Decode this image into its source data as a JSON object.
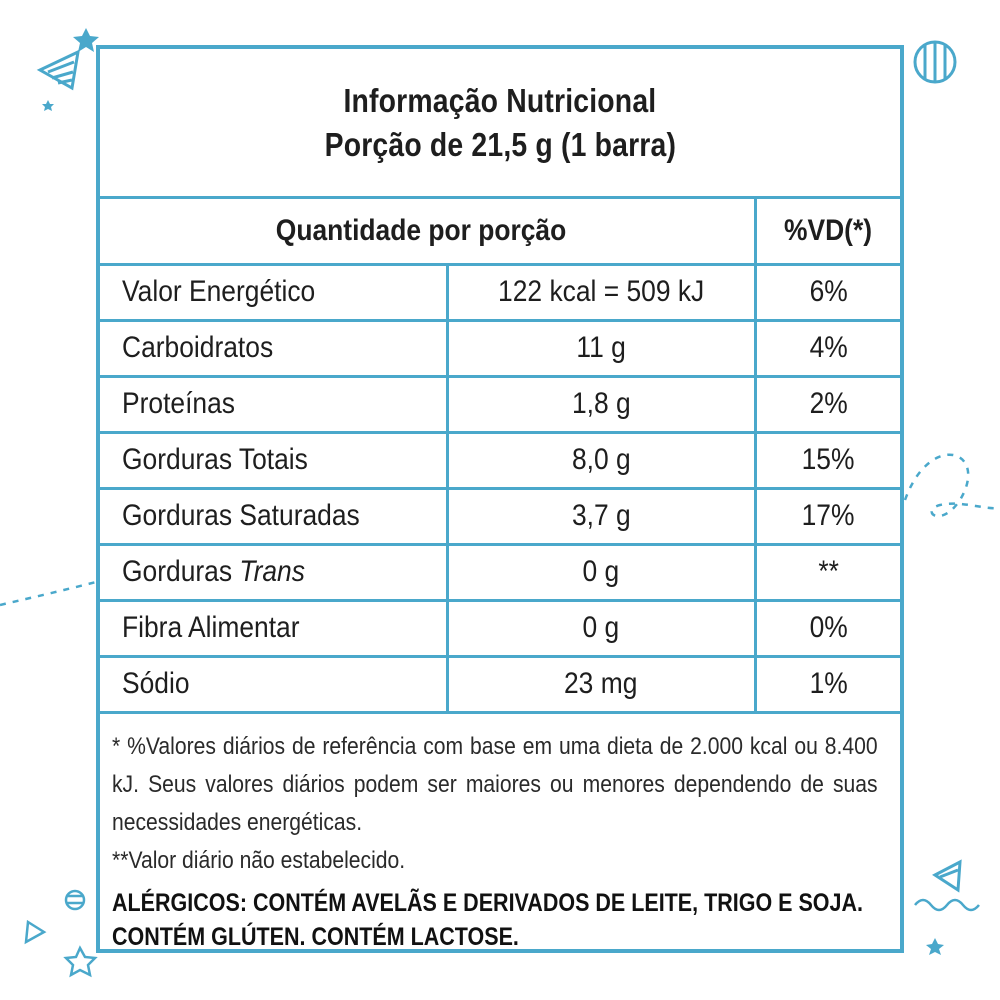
{
  "colors": {
    "accent": "#4aa8cb",
    "text": "#1e1e1e",
    "background": "#ffffff"
  },
  "header": {
    "title": "Informação Nutricional",
    "portion": "Porção de 21,5 g (1 barra)"
  },
  "table": {
    "header_quantity": "Quantidade por porção",
    "header_vd": "%VD(*)",
    "rows": [
      {
        "name": "Valor Energético",
        "amount": "122 kcal = 509 kJ",
        "vd": "6%"
      },
      {
        "name": "Carboidratos",
        "amount": "11 g",
        "vd": "4%"
      },
      {
        "name": "Proteínas",
        "amount": "1,8 g",
        "vd": "2%"
      },
      {
        "name": "Gorduras Totais",
        "amount": "8,0 g",
        "vd": "15%"
      },
      {
        "name": "Gorduras Saturadas",
        "amount": "3,7 g",
        "vd": "17%"
      },
      {
        "name": "Gorduras",
        "name_italic": "Trans",
        "amount": "0 g",
        "vd": "**"
      },
      {
        "name": "Fibra Alimentar",
        "amount": "0 g",
        "vd": "0%"
      },
      {
        "name": "Sódio",
        "amount": "23 mg",
        "vd": "1%"
      }
    ]
  },
  "footnotes": {
    "reference": "* %Valores diários de referência com base em uma dieta de 2.000 kcal ou 8.400 kJ. Seus valores diários podem ser maiores ou menores dependendo de suas necessidades energéticas.",
    "not_established": "**Valor diário não estabelecido.",
    "allergens_line1": "ALÉRGICOS: CONTÉM AVELÃS E DERIVADOS DE LEITE, TRIGO E SOJA.",
    "allergens_line2": "CONTÉM GLÚTEN. CONTÉM LACTOSE."
  },
  "decorations": [
    "party-hat-icon",
    "star-icon",
    "striped-ball-icon",
    "dashed-swirl-line"
  ]
}
